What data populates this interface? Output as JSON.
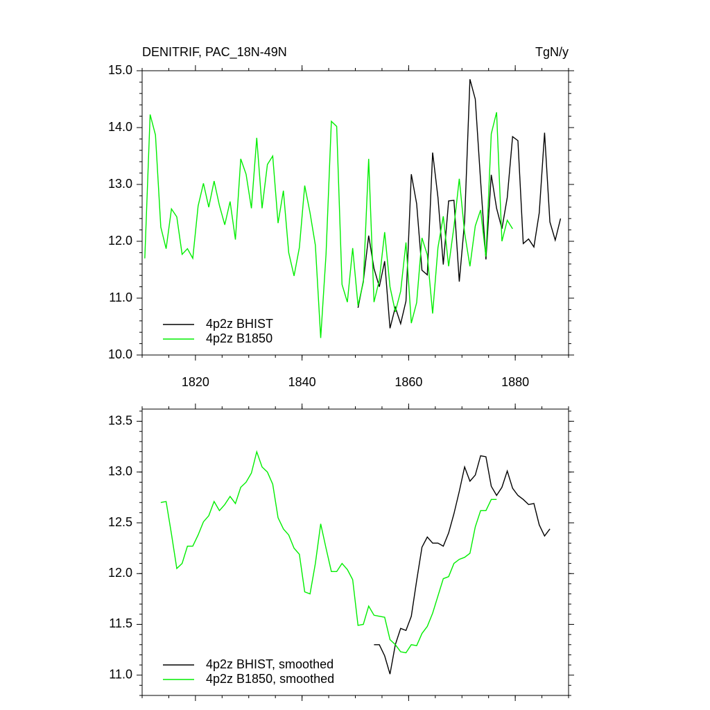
{
  "chart_data": [
    {
      "type": "line",
      "title": "DENITRIF, PAC_18N-49N",
      "units": "TgN/y",
      "x": [
        1810.5,
        1811.5,
        1812.5,
        1813.5,
        1814.5,
        1815.5,
        1816.5,
        1817.5,
        1818.5,
        1819.5,
        1820.5,
        1821.5,
        1822.5,
        1823.5,
        1824.5,
        1825.5,
        1826.5,
        1827.5,
        1828.5,
        1829.5,
        1830.5,
        1831.5,
        1832.5,
        1833.5,
        1834.5,
        1835.5,
        1836.5,
        1837.5,
        1838.5,
        1839.5,
        1840.5,
        1841.5,
        1842.5,
        1843.5,
        1844.5,
        1845.5,
        1846.5,
        1847.5,
        1848.5,
        1849.5,
        1850.5,
        1851.5,
        1852.5,
        1853.5,
        1854.5,
        1855.5,
        1856.5,
        1857.5,
        1858.5,
        1859.5,
        1860.5,
        1861.5,
        1862.5,
        1863.5,
        1864.5,
        1865.5,
        1866.5,
        1867.5,
        1868.5,
        1869.5,
        1870.5,
        1871.5,
        1872.5,
        1873.5,
        1874.5,
        1875.5,
        1876.5,
        1877.5,
        1878.5,
        1879.5,
        1880.5,
        1881.5,
        1882.5,
        1883.5,
        1884.5,
        1885.5,
        1886.5,
        1887.5,
        1888.5
      ],
      "series": [
        {
          "name": "4p2z BHIST",
          "color": "#000000",
          "values": [
            null,
            null,
            null,
            null,
            null,
            null,
            null,
            null,
            null,
            null,
            null,
            null,
            null,
            null,
            null,
            null,
            null,
            null,
            null,
            null,
            null,
            null,
            null,
            null,
            null,
            null,
            null,
            null,
            null,
            null,
            null,
            null,
            null,
            null,
            null,
            null,
            null,
            null,
            null,
            null,
            10.83,
            11.3,
            12.1,
            11.52,
            11.2,
            11.65,
            10.47,
            10.84,
            10.55,
            10.95,
            13.18,
            12.66,
            11.49,
            11.41,
            13.56,
            12.77,
            11.59,
            12.71,
            12.72,
            11.29,
            12.35,
            14.85,
            14.5,
            13.06,
            11.68,
            13.17,
            12.58,
            12.22,
            12.77,
            13.84,
            13.77,
            11.96,
            12.04,
            11.9,
            12.5,
            13.91,
            12.34,
            12.02,
            12.4
          ]
        },
        {
          "name": "4p2z B1850",
          "color": "#00ee00",
          "values": [
            11.7,
            14.23,
            13.87,
            12.25,
            11.87,
            12.57,
            12.43,
            11.77,
            11.87,
            11.7,
            12.62,
            13.02,
            12.6,
            13.06,
            12.63,
            12.29,
            12.7,
            12.03,
            13.45,
            13.18,
            12.58,
            13.82,
            12.58,
            13.35,
            13.5,
            12.32,
            12.89,
            11.8,
            11.39,
            11.89,
            12.98,
            12.5,
            11.93,
            10.3,
            11.77,
            14.11,
            14.02,
            11.24,
            10.93,
            11.88,
            10.87,
            11.28,
            13.45,
            10.93,
            11.32,
            12.16,
            11.2,
            10.76,
            11.12,
            11.98,
            10.56,
            10.92,
            12.06,
            11.76,
            10.73,
            11.89,
            12.44,
            11.56,
            12.26,
            13.1,
            12.15,
            11.56,
            12.27,
            12.55,
            11.73,
            13.89,
            14.27,
            12.0,
            12.37,
            12.22,
            null,
            null,
            null,
            null,
            null,
            null,
            null,
            null,
            null
          ]
        }
      ],
      "xlim": [
        1810,
        1890
      ],
      "xticks": [
        1820,
        1840,
        1860,
        1880
      ],
      "xtick_labels": true,
      "ylim": [
        10,
        15
      ],
      "yticks": [
        {
          "value": 10,
          "label": "10.0"
        },
        {
          "value": 11,
          "label": "11.0"
        },
        {
          "value": 12,
          "label": "12.0"
        },
        {
          "value": 13,
          "label": "13.0"
        },
        {
          "value": 14,
          "label": "14.0"
        },
        {
          "value": 15,
          "label": "15.0"
        }
      ],
      "legend": "lower left",
      "grid": false
    },
    {
      "type": "line",
      "x": [
        1810.5,
        1811.5,
        1812.5,
        1813.5,
        1814.5,
        1815.5,
        1816.5,
        1817.5,
        1818.5,
        1819.5,
        1820.5,
        1821.5,
        1822.5,
        1823.5,
        1824.5,
        1825.5,
        1826.5,
        1827.5,
        1828.5,
        1829.5,
        1830.5,
        1831.5,
        1832.5,
        1833.5,
        1834.5,
        1835.5,
        1836.5,
        1837.5,
        1838.5,
        1839.5,
        1840.5,
        1841.5,
        1842.5,
        1843.5,
        1844.5,
        1845.5,
        1846.5,
        1847.5,
        1848.5,
        1849.5,
        1850.5,
        1851.5,
        1852.5,
        1853.5,
        1854.5,
        1855.5,
        1856.5,
        1857.5,
        1858.5,
        1859.5,
        1860.5,
        1861.5,
        1862.5,
        1863.5,
        1864.5,
        1865.5,
        1866.5,
        1867.5,
        1868.5,
        1869.5,
        1870.5,
        1871.5,
        1872.5,
        1873.5,
        1874.5,
        1875.5,
        1876.5,
        1877.5,
        1878.5,
        1879.5,
        1880.5,
        1881.5,
        1882.5,
        1883.5,
        1884.5,
        1885.5,
        1886.5,
        1887.5,
        1888.5
      ],
      "series": [
        {
          "name": "4p2z BHIST, smoothed",
          "color": "#000000",
          "values": [
            null,
            null,
            null,
            null,
            null,
            null,
            null,
            null,
            null,
            null,
            null,
            null,
            null,
            null,
            null,
            null,
            null,
            null,
            null,
            null,
            null,
            null,
            null,
            null,
            null,
            null,
            null,
            null,
            null,
            null,
            null,
            null,
            null,
            null,
            null,
            null,
            null,
            null,
            null,
            null,
            null,
            null,
            null,
            11.3,
            11.3,
            11.19,
            11.01,
            11.3,
            11.46,
            11.44,
            11.58,
            11.93,
            12.26,
            12.36,
            12.3,
            12.3,
            12.27,
            12.4,
            12.59,
            12.81,
            13.05,
            12.91,
            12.97,
            13.16,
            13.15,
            12.86,
            12.77,
            12.85,
            13.01,
            12.84,
            12.77,
            12.73,
            12.68,
            12.69,
            12.48,
            12.37,
            12.44,
            null,
            null
          ]
        },
        {
          "name": "4p2z B1850, smoothed",
          "color": "#00ee00",
          "values": [
            null,
            null,
            null,
            12.7,
            12.71,
            12.39,
            12.05,
            12.1,
            12.27,
            12.27,
            12.38,
            12.51,
            12.57,
            12.71,
            12.62,
            12.68,
            12.76,
            12.69,
            12.85,
            12.9,
            12.99,
            13.2,
            13.05,
            13.0,
            12.88,
            12.55,
            12.44,
            12.38,
            12.25,
            12.19,
            11.82,
            11.8,
            12.1,
            12.49,
            12.25,
            12.02,
            12.02,
            12.1,
            12.04,
            11.94,
            11.49,
            11.5,
            11.68,
            11.59,
            11.58,
            11.57,
            11.35,
            11.3,
            11.23,
            11.22,
            11.3,
            11.29,
            11.41,
            11.48,
            11.61,
            11.78,
            11.95,
            11.97,
            12.1,
            12.14,
            12.16,
            12.2,
            12.46,
            12.62,
            12.62,
            12.73,
            12.73,
            null,
            null,
            null,
            null,
            null,
            null,
            null,
            null,
            null,
            null,
            null,
            null
          ]
        }
      ],
      "xlim": [
        1810,
        1890
      ],
      "xticks": [
        1820,
        1840,
        1860,
        1880
      ],
      "xtick_labels": false,
      "ylim": [
        10.8,
        13.62
      ],
      "yticks": [
        {
          "value": 11,
          "label": "11.0"
        },
        {
          "value": 11.5,
          "label": "11.5"
        },
        {
          "value": 12,
          "label": "12.0"
        },
        {
          "value": 12.5,
          "label": "12.5"
        },
        {
          "value": 13,
          "label": "13.0"
        },
        {
          "value": 13.5,
          "label": "13.5"
        }
      ],
      "legend": "lower left",
      "grid": false
    }
  ]
}
